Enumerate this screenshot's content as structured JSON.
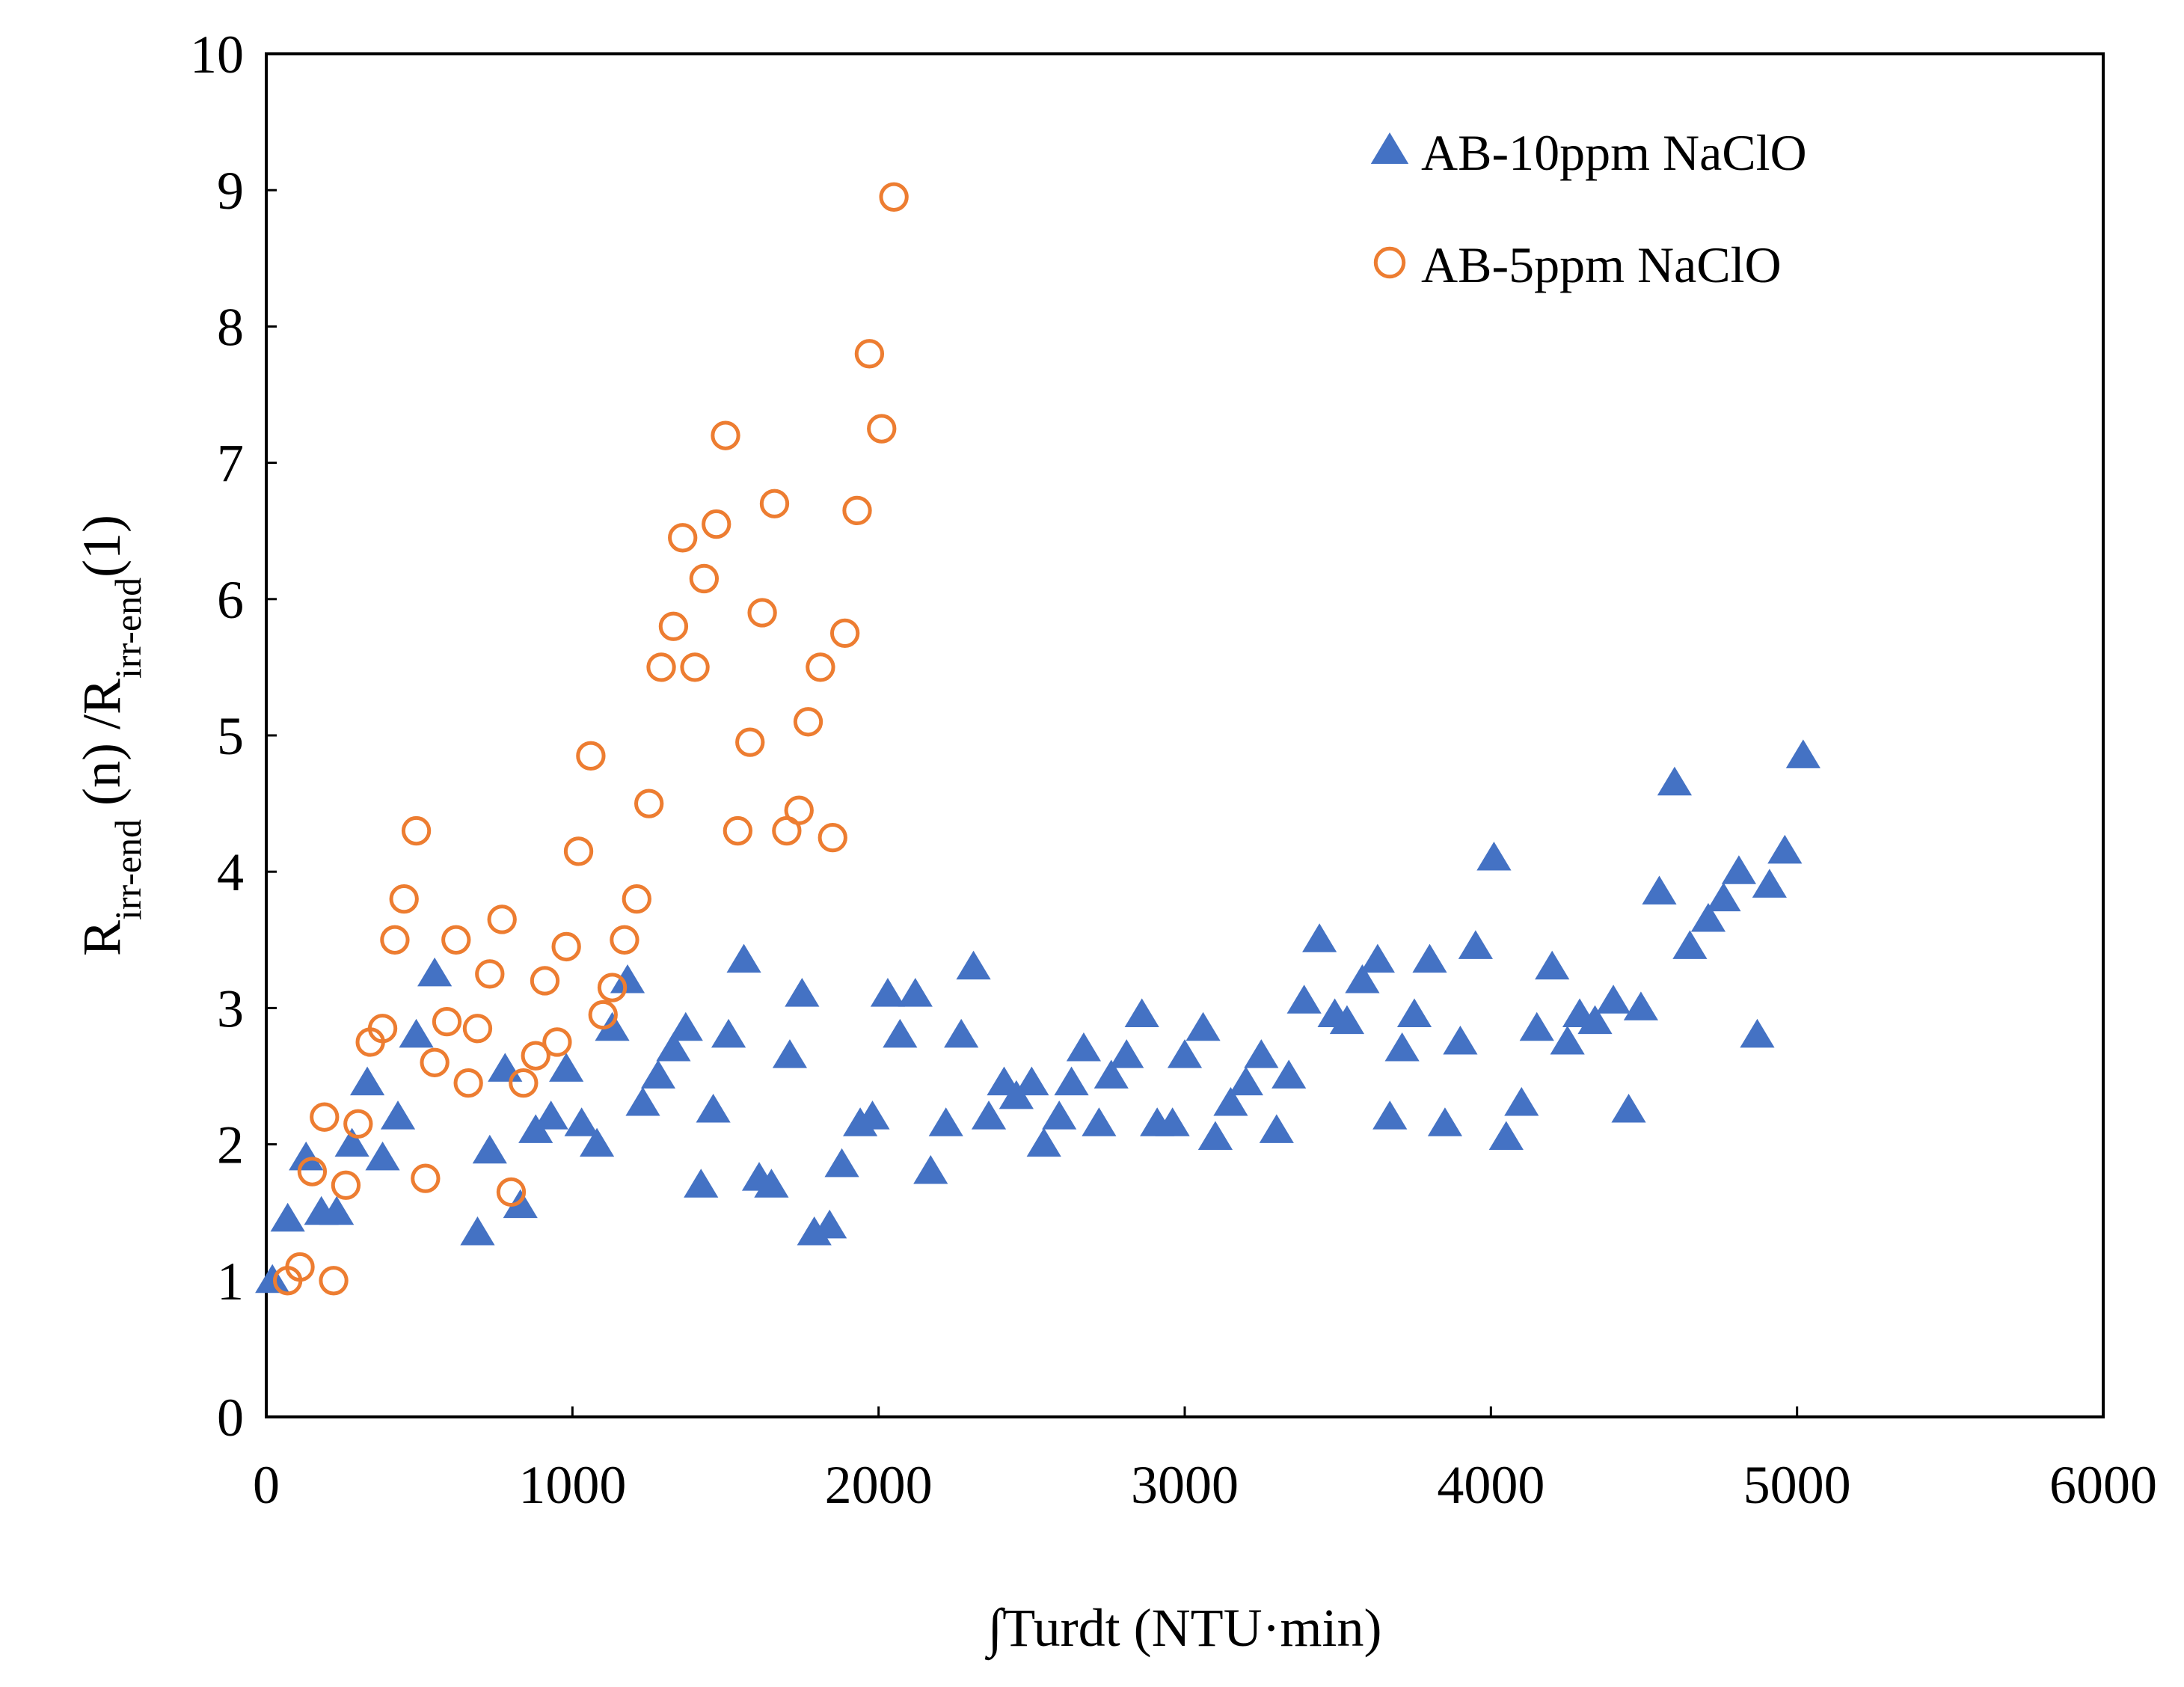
{
  "chart_data": {
    "type": "scatter",
    "title": "",
    "xlabel": "∫Turdt (NTU·min)",
    "ylabel": {
      "parts": [
        {
          "text": "R",
          "sub": false
        },
        {
          "text": "irr-end",
          "sub": true
        },
        {
          "text": " (n) /R",
          "sub": false
        },
        {
          "text": "irr-end",
          "sub": true
        },
        {
          "text": "(1)",
          "sub": false
        }
      ]
    },
    "xlim": [
      0,
      6000
    ],
    "ylim": [
      0,
      10
    ],
    "xticks": [
      0,
      1000,
      2000,
      3000,
      4000,
      5000,
      6000
    ],
    "yticks": [
      0,
      1,
      2,
      3,
      4,
      5,
      6,
      7,
      8,
      9,
      10
    ],
    "grid": false,
    "legend_position": "top-right",
    "series": [
      {
        "name": "AB-10ppm NaClO",
        "marker": "triangle",
        "color": "#4472C4",
        "points": [
          [
            20,
            1.0
          ],
          [
            70,
            1.45
          ],
          [
            130,
            1.9
          ],
          [
            180,
            1.5
          ],
          [
            230,
            1.5
          ],
          [
            280,
            2.0
          ],
          [
            330,
            2.45
          ],
          [
            380,
            1.9
          ],
          [
            430,
            2.2
          ],
          [
            490,
            2.8
          ],
          [
            550,
            3.25
          ],
          [
            690,
            1.35
          ],
          [
            730,
            1.95
          ],
          [
            780,
            2.55
          ],
          [
            830,
            1.55
          ],
          [
            880,
            2.1
          ],
          [
            930,
            2.2
          ],
          [
            980,
            2.55
          ],
          [
            1030,
            2.15
          ],
          [
            1080,
            2.0
          ],
          [
            1130,
            2.85
          ],
          [
            1180,
            3.2
          ],
          [
            1230,
            2.3
          ],
          [
            1280,
            2.5
          ],
          [
            1330,
            2.7
          ],
          [
            1370,
            2.85
          ],
          [
            1420,
            1.7
          ],
          [
            1460,
            2.25
          ],
          [
            1510,
            2.8
          ],
          [
            1560,
            3.35
          ],
          [
            1610,
            1.75
          ],
          [
            1650,
            1.7
          ],
          [
            1710,
            2.65
          ],
          [
            1750,
            3.1
          ],
          [
            1790,
            1.35
          ],
          [
            1840,
            1.4
          ],
          [
            1880,
            1.85
          ],
          [
            1940,
            2.15
          ],
          [
            1980,
            2.2
          ],
          [
            2030,
            3.1
          ],
          [
            2070,
            2.8
          ],
          [
            2120,
            3.1
          ],
          [
            2170,
            1.8
          ],
          [
            2220,
            2.15
          ],
          [
            2270,
            2.8
          ],
          [
            2310,
            3.3
          ],
          [
            2360,
            2.2
          ],
          [
            2410,
            2.45
          ],
          [
            2450,
            2.35
          ],
          [
            2500,
            2.45
          ],
          [
            2540,
            2.0
          ],
          [
            2590,
            2.2
          ],
          [
            2630,
            2.45
          ],
          [
            2670,
            2.7
          ],
          [
            2720,
            2.15
          ],
          [
            2760,
            2.5
          ],
          [
            2810,
            2.65
          ],
          [
            2860,
            2.95
          ],
          [
            2910,
            2.15
          ],
          [
            2960,
            2.15
          ],
          [
            3000,
            2.65
          ],
          [
            3060,
            2.85
          ],
          [
            3100,
            2.05
          ],
          [
            3150,
            2.3
          ],
          [
            3200,
            2.45
          ],
          [
            3250,
            2.65
          ],
          [
            3300,
            2.1
          ],
          [
            3340,
            2.5
          ],
          [
            3390,
            3.05
          ],
          [
            3440,
            3.5
          ],
          [
            3490,
            2.95
          ],
          [
            3530,
            2.9
          ],
          [
            3580,
            3.2
          ],
          [
            3630,
            3.35
          ],
          [
            3670,
            2.2
          ],
          [
            3710,
            2.7
          ],
          [
            3750,
            2.95
          ],
          [
            3800,
            3.35
          ],
          [
            3850,
            2.15
          ],
          [
            3900,
            2.75
          ],
          [
            3950,
            3.45
          ],
          [
            4010,
            4.1
          ],
          [
            4050,
            2.05
          ],
          [
            4100,
            2.3
          ],
          [
            4150,
            2.85
          ],
          [
            4200,
            3.3
          ],
          [
            4250,
            2.75
          ],
          [
            4290,
            2.95
          ],
          [
            4340,
            2.9
          ],
          [
            4400,
            3.05
          ],
          [
            4450,
            2.25
          ],
          [
            4490,
            3.0
          ],
          [
            4550,
            3.85
          ],
          [
            4600,
            4.65
          ],
          [
            4650,
            3.45
          ],
          [
            4710,
            3.65
          ],
          [
            4760,
            3.8
          ],
          [
            4810,
            4.0
          ],
          [
            4870,
            2.8
          ],
          [
            4910,
            3.9
          ],
          [
            4960,
            4.15
          ],
          [
            5020,
            4.85
          ]
        ]
      },
      {
        "name": "AB-5ppm NaClO",
        "marker": "circle",
        "color": "#ED7D31",
        "points": [
          [
            70,
            1.0
          ],
          [
            110,
            1.1
          ],
          [
            150,
            1.8
          ],
          [
            190,
            2.2
          ],
          [
            220,
            1.0
          ],
          [
            260,
            1.7
          ],
          [
            300,
            2.15
          ],
          [
            340,
            2.75
          ],
          [
            380,
            2.85
          ],
          [
            420,
            3.5
          ],
          [
            450,
            3.8
          ],
          [
            490,
            4.3
          ],
          [
            520,
            1.75
          ],
          [
            550,
            2.6
          ],
          [
            590,
            2.9
          ],
          [
            620,
            3.5
          ],
          [
            660,
            2.45
          ],
          [
            690,
            2.85
          ],
          [
            730,
            3.25
          ],
          [
            770,
            3.65
          ],
          [
            800,
            1.65
          ],
          [
            840,
            2.45
          ],
          [
            880,
            2.65
          ],
          [
            910,
            3.2
          ],
          [
            950,
            2.75
          ],
          [
            980,
            3.45
          ],
          [
            1020,
            4.15
          ],
          [
            1060,
            4.85
          ],
          [
            1100,
            2.95
          ],
          [
            1130,
            3.15
          ],
          [
            1170,
            3.5
          ],
          [
            1210,
            3.8
          ],
          [
            1250,
            4.5
          ],
          [
            1290,
            5.5
          ],
          [
            1330,
            5.8
          ],
          [
            1360,
            6.45
          ],
          [
            1400,
            5.5
          ],
          [
            1430,
            6.15
          ],
          [
            1470,
            6.55
          ],
          [
            1500,
            7.2
          ],
          [
            1540,
            4.3
          ],
          [
            1580,
            4.95
          ],
          [
            1620,
            5.9
          ],
          [
            1660,
            6.7
          ],
          [
            1700,
            4.3
          ],
          [
            1740,
            4.45
          ],
          [
            1770,
            5.1
          ],
          [
            1810,
            5.5
          ],
          [
            1850,
            4.25
          ],
          [
            1890,
            5.75
          ],
          [
            1930,
            6.65
          ],
          [
            1970,
            7.8
          ],
          [
            2010,
            7.25
          ],
          [
            2050,
            8.95
          ]
        ]
      }
    ]
  }
}
